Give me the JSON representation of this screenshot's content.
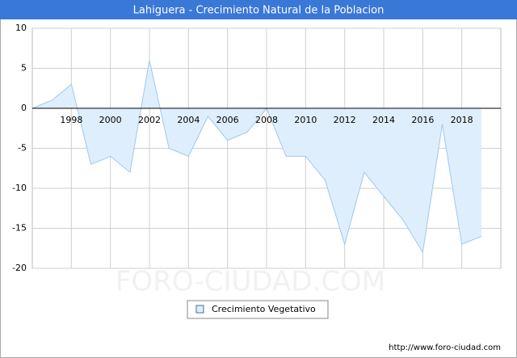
{
  "chart_data": {
    "type": "area",
    "title": "Lahiguera - Crecimiento Natural de la Poblacion",
    "x": [
      1996,
      1997,
      1998,
      1999,
      2000,
      2001,
      2002,
      2003,
      2004,
      2005,
      2006,
      2007,
      2008,
      2009,
      2010,
      2011,
      2012,
      2013,
      2014,
      2015,
      2016,
      2017,
      2018,
      2019
    ],
    "series": [
      {
        "name": "Crecimiento Vegetativo",
        "color": "#9fc8ec",
        "values": [
          0,
          1,
          3,
          -7,
          -6,
          -8,
          6,
          -5,
          -6,
          -1,
          -4,
          -3,
          0,
          -6,
          -6,
          -9,
          -17,
          -8,
          -11,
          -14,
          -18,
          -2,
          -17,
          -16
        ]
      }
    ],
    "xlim": [
      1996,
      2020
    ],
    "xticks": [
      1998,
      2000,
      2002,
      2004,
      2006,
      2008,
      2010,
      2012,
      2014,
      2016,
      2018
    ],
    "ylim": [
      -20,
      10
    ],
    "yticks": [
      -20,
      -15,
      -10,
      -5,
      0,
      5,
      10
    ],
    "grid": true,
    "watermark": "FORO-CIUDAD.COM",
    "footer": "http://www.foro-ciudad.com"
  }
}
